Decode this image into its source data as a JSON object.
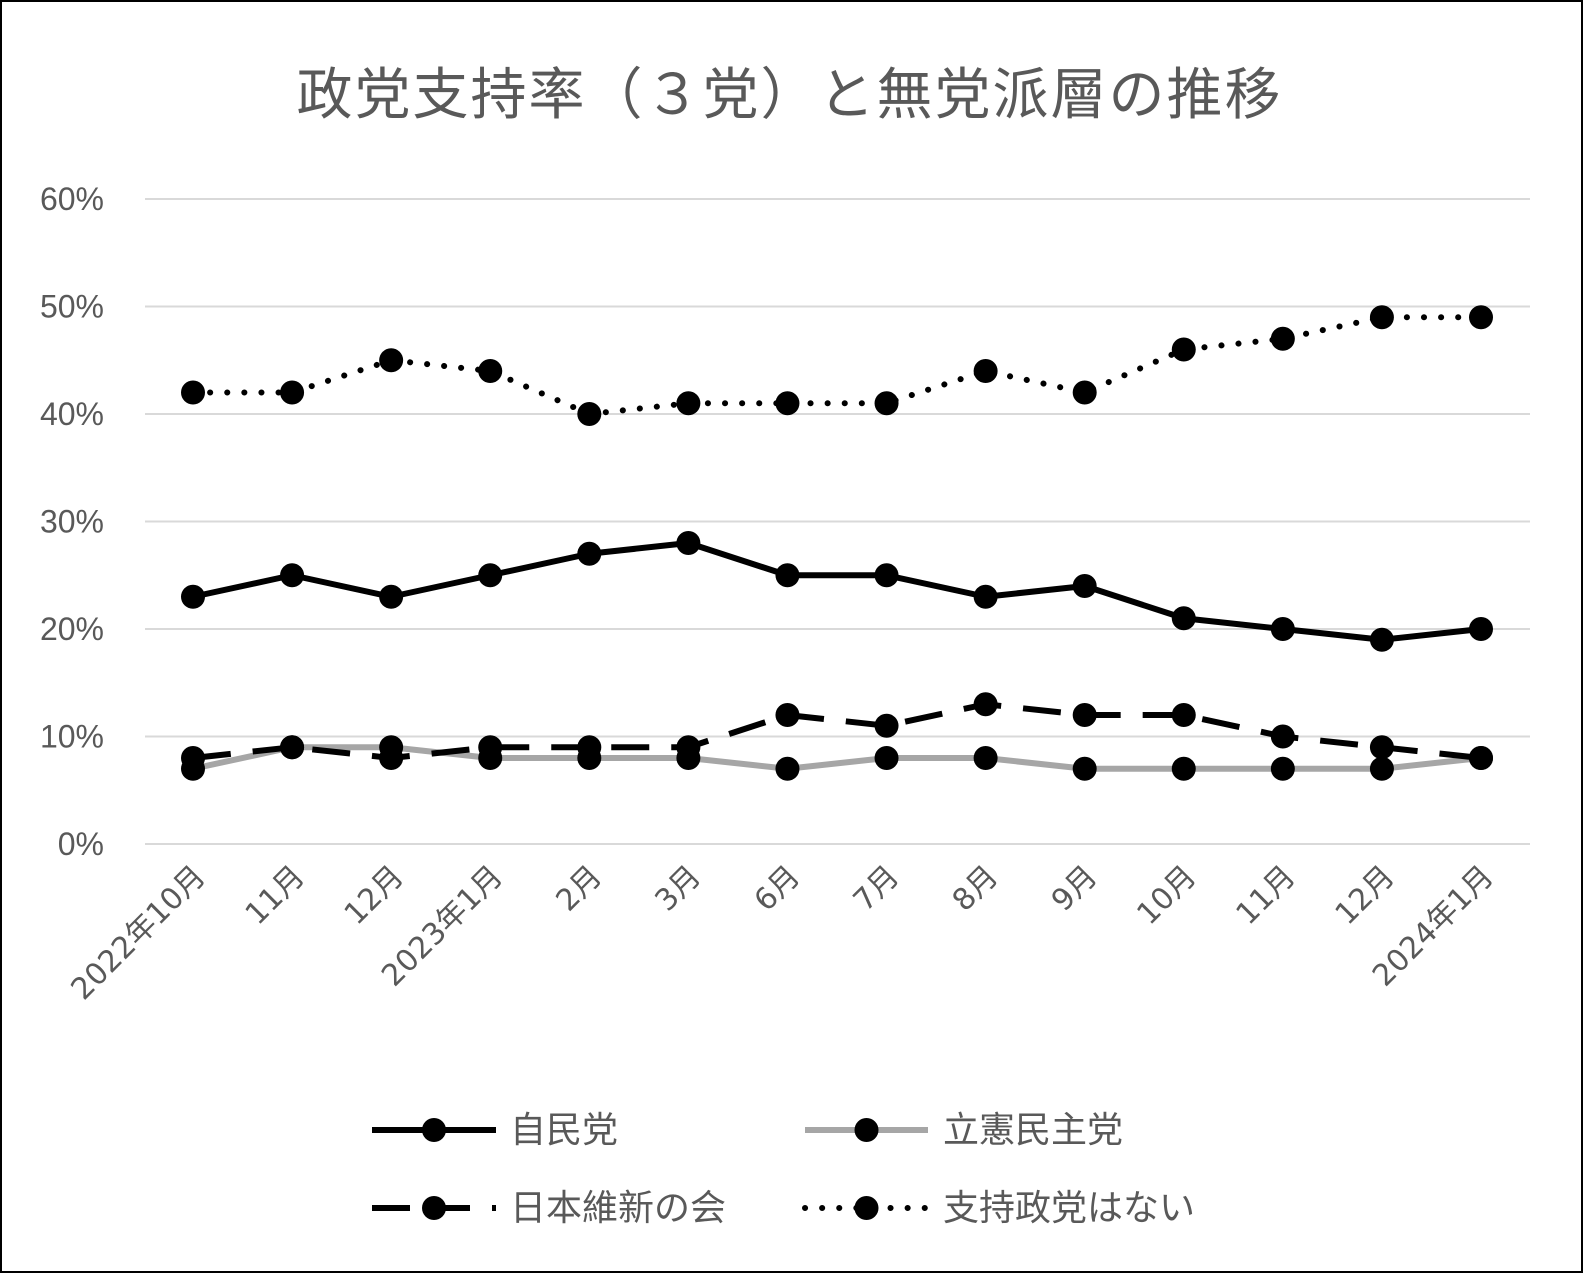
{
  "chart_data": {
    "type": "line",
    "title": "政党支持率（３党）と無党派層の推移",
    "categories": [
      "2022年10月",
      "11月",
      "12月",
      "2023年1月",
      "2月",
      "3月",
      "6月",
      "7月",
      "8月",
      "9月",
      "10月",
      "11月",
      "12月",
      "2024年1月"
    ],
    "ylim": [
      0,
      60
    ],
    "yticks": [
      "0%",
      "10%",
      "20%",
      "30%",
      "40%",
      "50%",
      "60%"
    ],
    "grid": true,
    "legend_position": "bottom",
    "series": [
      {
        "name": "自民党",
        "values": [
          23,
          25,
          23,
          25,
          27,
          28,
          25,
          25,
          23,
          24,
          21,
          20,
          19,
          20
        ],
        "color": "#000000",
        "style": "solid"
      },
      {
        "name": "立憲民主党",
        "values": [
          7,
          9,
          9,
          8,
          8,
          8,
          7,
          8,
          8,
          7,
          7,
          7,
          7,
          8
        ],
        "color": "#a6a6a6",
        "style": "solid"
      },
      {
        "name": "日本維新の会",
        "values": [
          8,
          9,
          8,
          9,
          9,
          9,
          12,
          11,
          13,
          12,
          12,
          10,
          9,
          8
        ],
        "color": "#000000",
        "style": "dash"
      },
      {
        "name": "支持政党はない",
        "values": [
          42,
          42,
          45,
          44,
          40,
          41,
          41,
          41,
          44,
          42,
          46,
          47,
          49,
          49
        ],
        "color": "#000000",
        "style": "dot"
      }
    ]
  }
}
